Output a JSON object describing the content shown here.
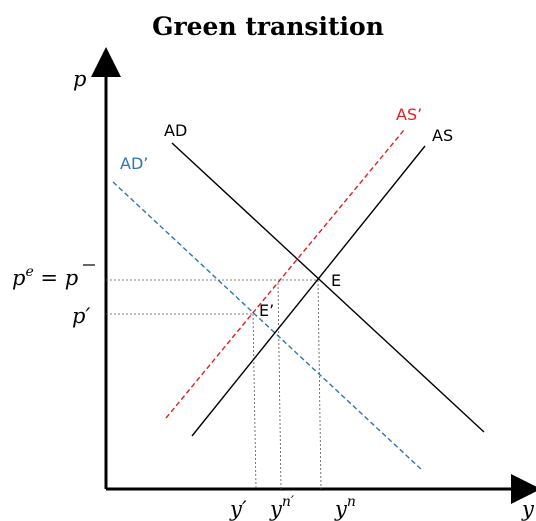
{
  "title": "Green transition",
  "axes": {
    "y_symbol": "p",
    "x_symbol": "y"
  },
  "curves": {
    "ad": {
      "label": "AD",
      "color": "#000000",
      "style": "solid"
    },
    "ad_prime": {
      "label": "AD’",
      "color": "#2e75b6",
      "style": "dashed"
    },
    "as": {
      "label": "AS",
      "color": "#000000",
      "style": "solid"
    },
    "as_prime": {
      "label": "AS’",
      "color": "#e02020",
      "style": "dashed"
    }
  },
  "points": {
    "e": "E",
    "e_prime": "E’"
  },
  "y_ticks": {
    "pe_base": "p",
    "pe_sup": "e",
    "pe_rest": " = p",
    "p_prime": "p′"
  },
  "x_ticks": {
    "y_prime": "y′",
    "yn_prime_base": "y",
    "yn_prime_sup": "n′",
    "yn_base": "y",
    "yn_sup": "n"
  }
}
